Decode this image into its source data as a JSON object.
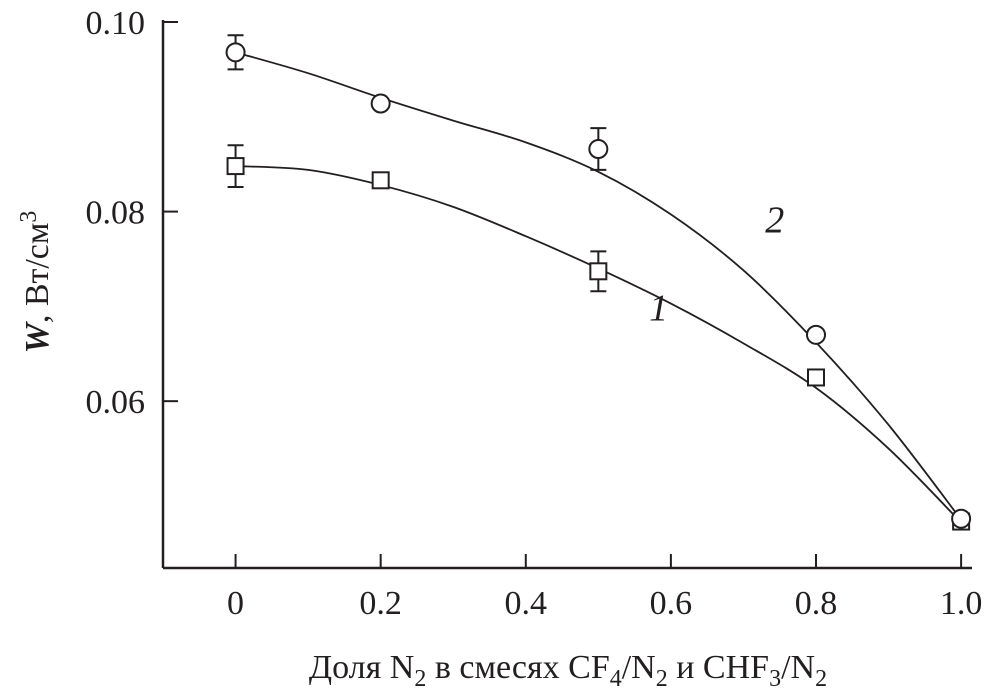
{
  "chart_data": {
    "type": "line",
    "title": "",
    "xlabel": {
      "main": "Доля N",
      "sub1": "2",
      "mid1": " в смесях CF",
      "sub2": "4",
      "mid2": "/N",
      "sub3": "2",
      "mid3": " и CHF",
      "sub4": "3",
      "mid4": "/N",
      "sub5": "2"
    },
    "ylabel": {
      "italic": "W",
      "rest": ", Вт/см",
      "sup": "3"
    },
    "xlim": [
      -0.1,
      1.015
    ],
    "ylim": [
      0.0424,
      0.1
    ],
    "xticks": [
      {
        "v": 0,
        "label": "0"
      },
      {
        "v": 0.2,
        "label": "0.2"
      },
      {
        "v": 0.4,
        "label": "0.4"
      },
      {
        "v": 0.6,
        "label": "0.6"
      },
      {
        "v": 0.8,
        "label": "0.8"
      },
      {
        "v": 1.0,
        "label": "1.0"
      }
    ],
    "yticks": [
      {
        "v": 0.06,
        "label": "0.06"
      },
      {
        "v": 0.08,
        "label": "0.08"
      },
      {
        "v": 0.1,
        "label": "0.10"
      }
    ],
    "grid": false,
    "series": [
      {
        "name": "1",
        "marker": "square",
        "x": [
          0,
          0.2,
          0.5,
          0.8,
          1.0
        ],
        "y": [
          0.0848,
          0.0833,
          0.0737,
          0.0625,
          0.0473
        ],
        "err": [
          0.0022,
          0,
          0.0021,
          0,
          0
        ],
        "fit_x": [
          0,
          0.1,
          0.2,
          0.3,
          0.4,
          0.5,
          0.6,
          0.7,
          0.8,
          0.9,
          1.0
        ],
        "fit_y": [
          0.0848,
          0.0844,
          0.0828,
          0.0805,
          0.0774,
          0.074,
          0.0703,
          0.0661,
          0.0614,
          0.055,
          0.0472
        ],
        "label_pos": {
          "x": 0.57,
          "y": 0.0685
        }
      },
      {
        "name": "2",
        "marker": "circle",
        "x": [
          0,
          0.2,
          0.5,
          0.8,
          1.0
        ],
        "y": [
          0.0968,
          0.0914,
          0.0866,
          0.067,
          0.0476
        ],
        "err": [
          0.0018,
          0,
          0.0022,
          0,
          0
        ],
        "fit_x": [
          0,
          0.1,
          0.2,
          0.3,
          0.4,
          0.5,
          0.6,
          0.7,
          0.8,
          0.9,
          1.0
        ],
        "fit_y": [
          0.0968,
          0.0946,
          0.092,
          0.0896,
          0.0873,
          0.0842,
          0.0797,
          0.0738,
          0.0662,
          0.0575,
          0.0475
        ],
        "label_pos": {
          "x": 0.73,
          "y": 0.0778
        }
      }
    ]
  }
}
